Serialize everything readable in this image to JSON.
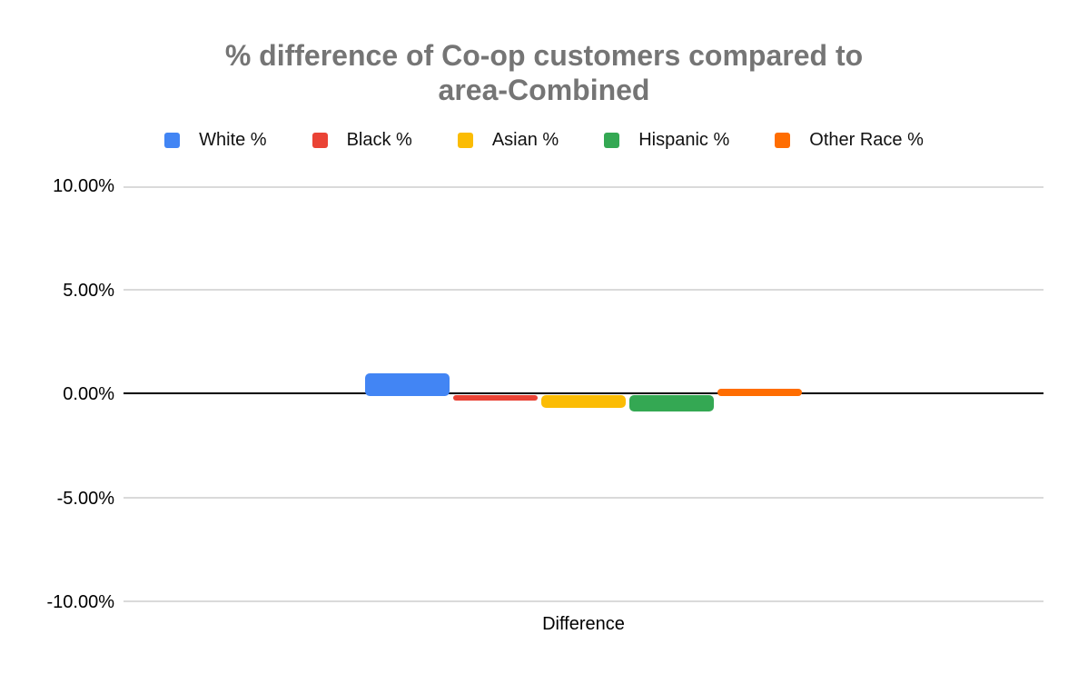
{
  "title_lines": [
    "% difference of Co-op customers compared to",
    "area-Combined"
  ],
  "chart_data": {
    "type": "bar",
    "title": "% difference of Co-op customers compared to area-Combined",
    "title_color": "#757575",
    "categories": [
      "Difference"
    ],
    "series": [
      {
        "name": "White %",
        "color": "#4285F4",
        "values": [
          1.0
        ]
      },
      {
        "name": "Black %",
        "color": "#EA4335",
        "values": [
          -0.25
        ]
      },
      {
        "name": "Asian %",
        "color": "#FBBC04",
        "values": [
          -0.6
        ]
      },
      {
        "name": "Hispanic %",
        "color": "#34A853",
        "values": [
          -0.8
        ]
      },
      {
        "name": "Other Race %",
        "color": "#FF6D01",
        "values": [
          0.28
        ]
      }
    ],
    "xlabel": "Difference",
    "ylabel": "",
    "ylim": [
      -10,
      10
    ],
    "ytick_values": [
      10,
      5,
      0,
      -5,
      -10
    ],
    "ytick_labels": [
      "10.00%",
      "5.00%",
      "0.00%",
      "-5.00%",
      "-10.00%"
    ],
    "grid": true,
    "legend_position": "top",
    "gridline_color": "#dadada",
    "baseline_color": "#000000",
    "axis_text_color": "#000000"
  }
}
